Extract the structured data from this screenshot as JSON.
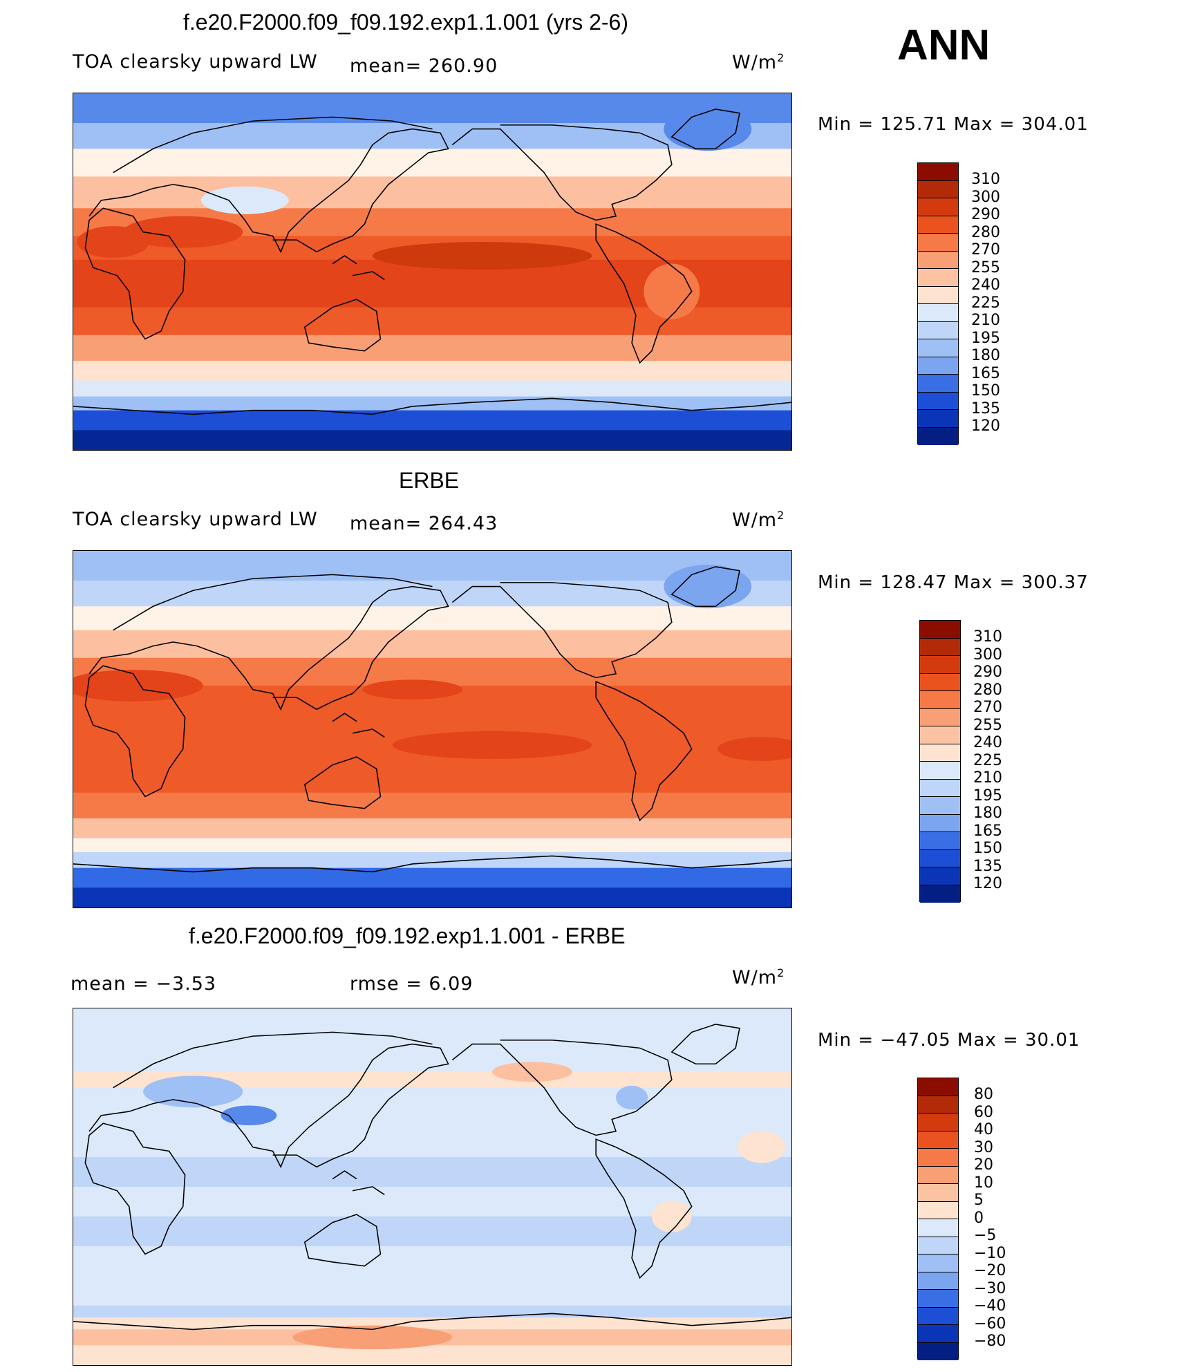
{
  "season": "ANN",
  "ramp_warm": [
    "#fde3d0",
    "#fcbf9f",
    "#f99f76",
    "#f57a48",
    "#ee5a28",
    "#e44419",
    "#cf3a0d",
    "#b02a08",
    "#8a1100"
  ],
  "ramp_cool": [
    "#dbe9fb",
    "#bfd6f8",
    "#9fc0f5",
    "#7ca5ef",
    "#5789ea",
    "#3269e4",
    "#1d4fd6",
    "#0b35b7",
    "#052796",
    "#031b72"
  ],
  "panels": [
    {
      "title": "f.e20.F2000.f09_f09.192.exp1.1.001 (yrs 2-6)",
      "left_label": "TOA clearsky upward LW",
      "middle_label": "mean= 260.90",
      "units": "W/m",
      "units_sup": "2",
      "min_max": "Min = 125.71  Max = 304.01",
      "colorbar": {
        "labels": [
          "310",
          "300",
          "290",
          "280",
          "270",
          "255",
          "240",
          "225",
          "210",
          "195",
          "180",
          "165",
          "150",
          "135",
          "120"
        ],
        "colors": [
          "#8b0d00",
          "#b22a08",
          "#d33b0f",
          "#ea5220",
          "#f57a48",
          "#f99f76",
          "#fcc3a3",
          "#fde3d0",
          "#dbe9fb",
          "#bfd6f8",
          "#9fc0f5",
          "#7ca5ef",
          "#3a6ee4",
          "#1d4fd6",
          "#0b35b7",
          "#041f84"
        ]
      },
      "field": {
        "bands": [
          {
            "lat": 90,
            "level": -5
          },
          {
            "lat": 75,
            "level": -3
          },
          {
            "lat": 62,
            "level": 0
          },
          {
            "lat": 48,
            "level": 2
          },
          {
            "lat": 32,
            "level": 4
          },
          {
            "lat": 18,
            "level": 5
          },
          {
            "lat": 6,
            "level": 6
          },
          {
            "lat": -6,
            "level": 6
          },
          {
            "lat": -18,
            "level": 5
          },
          {
            "lat": -32,
            "level": 3
          },
          {
            "lat": -45,
            "level": 1
          },
          {
            "lat": -55,
            "level": -1
          },
          {
            "lat": -63,
            "level": -3
          },
          {
            "lat": -70,
            "level": -7
          },
          {
            "lat": -80,
            "level": -9
          },
          {
            "lat": -90,
            "level": -9
          }
        ],
        "blobs": [
          {
            "lon": 205,
            "lat": 8,
            "rx": 55,
            "ry": 7,
            "level": 7
          },
          {
            "lon": 55,
            "lat": 20,
            "rx": 30,
            "ry": 8,
            "level": 6
          },
          {
            "lon": 86,
            "lat": 36,
            "rx": 22,
            "ry": 7,
            "level": -1
          },
          {
            "lon": 318,
            "lat": 72,
            "rx": 22,
            "ry": 11,
            "level": -5
          },
          {
            "lon": 20,
            "lat": 15,
            "rx": 18,
            "ry": 8,
            "level": 6
          },
          {
            "lon": 300,
            "lat": -10,
            "rx": 14,
            "ry": 14,
            "level": 4
          }
        ]
      }
    },
    {
      "title": "ERBE",
      "left_label": "TOA clearsky upward LW",
      "middle_label": "mean= 264.43",
      "units": "W/m",
      "units_sup": "2",
      "min_max": "Min = 128.47  Max = 300.37",
      "colorbar": {
        "labels": [
          "310",
          "300",
          "290",
          "280",
          "270",
          "255",
          "240",
          "225",
          "210",
          "195",
          "180",
          "165",
          "150",
          "135",
          "120"
        ],
        "colors": [
          "#8b0d00",
          "#b22a08",
          "#d33b0f",
          "#ea5220",
          "#f57a48",
          "#f99f76",
          "#fcc3a3",
          "#fde3d0",
          "#dbe9fb",
          "#bfd6f8",
          "#9fc0f5",
          "#7ca5ef",
          "#3a6ee4",
          "#1d4fd6",
          "#0b35b7",
          "#041f84"
        ]
      },
      "field": {
        "bands": [
          {
            "lat": 90,
            "level": -3
          },
          {
            "lat": 75,
            "level": -2
          },
          {
            "lat": 62,
            "level": 0
          },
          {
            "lat": 50,
            "level": 2
          },
          {
            "lat": 36,
            "level": 4
          },
          {
            "lat": 22,
            "level": 5
          },
          {
            "lat": 6,
            "level": 5
          },
          {
            "lat": -6,
            "level": 5
          },
          {
            "lat": -20,
            "level": 5
          },
          {
            "lat": -32,
            "level": 4
          },
          {
            "lat": -45,
            "level": 2
          },
          {
            "lat": -55,
            "level": 0
          },
          {
            "lat": -62,
            "level": -2
          },
          {
            "lat": -70,
            "level": -6
          },
          {
            "lat": -80,
            "level": -8
          },
          {
            "lat": -90,
            "level": -9
          }
        ],
        "blobs": [
          {
            "lon": 210,
            "lat": -8,
            "rx": 50,
            "ry": 7,
            "level": 6
          },
          {
            "lon": 170,
            "lat": 20,
            "rx": 25,
            "ry": 5,
            "level": 6
          },
          {
            "lon": 30,
            "lat": 22,
            "rx": 35,
            "ry": 8,
            "level": 6
          },
          {
            "lon": 318,
            "lat": 72,
            "rx": 22,
            "ry": 11,
            "level": -4
          },
          {
            "lon": 345,
            "lat": -10,
            "rx": 22,
            "ry": 6,
            "level": 6
          }
        ]
      }
    },
    {
      "title": "f.e20.F2000.f09_f09.192.exp1.1.001 - ERBE",
      "left_label": "mean =    −3.53",
      "middle_label": "rmse =     6.09",
      "units": "W/m",
      "units_sup": "2",
      "min_max": "Min = −47.05  Max =   30.01",
      "colorbar": {
        "labels": [
          "80",
          "60",
          "40",
          "30",
          "20",
          "10",
          "5",
          "0",
          "−5",
          "−10",
          "−20",
          "−30",
          "−40",
          "−60",
          "−80"
        ],
        "colors": [
          "#8b0d00",
          "#b22a08",
          "#d33b0f",
          "#ea5220",
          "#f57a48",
          "#f99f76",
          "#fcc3a3",
          "#fde3d0",
          "#dbe9fb",
          "#bfd6f8",
          "#9fc0f5",
          "#7ca5ef",
          "#3a6ee4",
          "#1d4fd6",
          "#0b35b7",
          "#041f84"
        ]
      },
      "field": {
        "bands": [
          {
            "lat": 90,
            "level": -1
          },
          {
            "lat": 70,
            "level": -1
          },
          {
            "lat": 58,
            "level": 1
          },
          {
            "lat": 50,
            "level": -1
          },
          {
            "lat": 30,
            "level": -1
          },
          {
            "lat": 15,
            "level": -2
          },
          {
            "lat": 0,
            "level": -1
          },
          {
            "lat": -15,
            "level": -2
          },
          {
            "lat": -30,
            "level": -1
          },
          {
            "lat": -50,
            "level": -1
          },
          {
            "lat": -60,
            "level": -2
          },
          {
            "lat": -66,
            "level": 1
          },
          {
            "lat": -72,
            "level": 2
          },
          {
            "lat": -80,
            "level": 1
          },
          {
            "lat": -90,
            "level": 1
          }
        ],
        "blobs": [
          {
            "lon": 88,
            "lat": 36,
            "rx": 14,
            "ry": 5,
            "level": -5
          },
          {
            "lon": 60,
            "lat": 48,
            "rx": 25,
            "ry": 8,
            "level": -3
          },
          {
            "lon": 345,
            "lat": 20,
            "rx": 12,
            "ry": 8,
            "level": 1
          },
          {
            "lon": 300,
            "lat": -15,
            "rx": 10,
            "ry": 8,
            "level": 1
          },
          {
            "lon": 230,
            "lat": 58,
            "rx": 20,
            "ry": 5,
            "level": 2
          },
          {
            "lon": 150,
            "lat": -76,
            "rx": 40,
            "ry": 6,
            "level": 3
          },
          {
            "lon": 280,
            "lat": 45,
            "rx": 8,
            "ry": 6,
            "level": -3
          }
        ]
      }
    }
  ]
}
